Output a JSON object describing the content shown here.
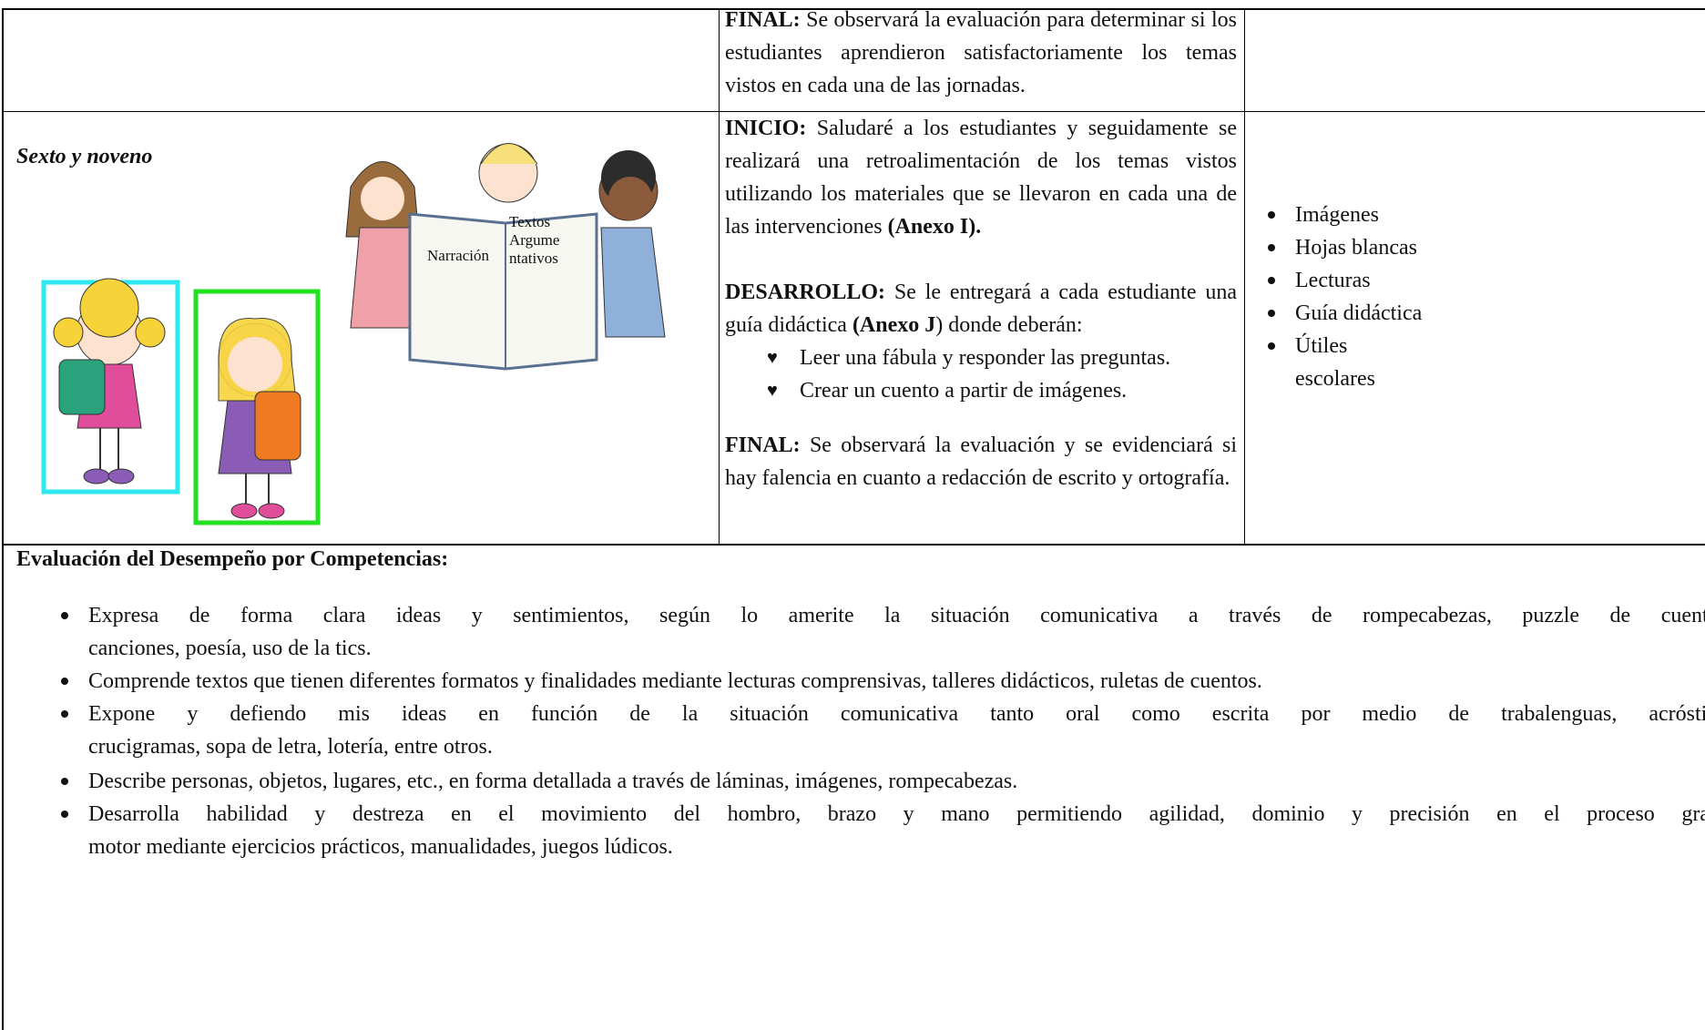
{
  "table": {
    "rows": [
      {
        "activities": [
          {
            "runs": [
              {
                "text": "FINAL:",
                "bold": true
              },
              {
                "text": " Se observará la evaluación para determinar si los estudiantes aprendieron satisfactoriamente los temas vistos en cada una de las jornadas.",
                "bold": false
              }
            ]
          }
        ]
      },
      {
        "group": "Sexto y noveno",
        "illustration": {
          "book_left": "Narración",
          "book_right": [
            "Textos",
            "Argume",
            "ntativos"
          ]
        },
        "activities": [
          {
            "runs": [
              {
                "text": "INICIO:",
                "bold": true
              },
              {
                "text": " Saludaré a los estudiantes y seguidamente se realizará una retroalimentación de los temas vistos utilizando los materiales que se llevaron en cada una de las intervenciones ",
                "bold": false
              },
              {
                "text": "(Anexo I).",
                "bold": true
              }
            ]
          },
          {
            "runs": [
              {
                "text": "DESARROLLO:",
                "bold": true
              },
              {
                "text": " Se le entregará a cada estudiante una guía didáctica ",
                "bold": false
              },
              {
                "text": "(Anexo J",
                "bold": true
              },
              {
                "text": ") donde deberán:",
                "bold": false
              }
            ],
            "steps": [
              "Leer una fábula y responder las preguntas.",
              "Crear un cuento a partir de imágenes."
            ]
          },
          {
            "runs": [
              {
                "text": "FINAL:",
                "bold": true
              },
              {
                "text": " Se observará la evaluación y se evidenciará si hay falencia en cuanto a redacción de escrito y ortografía.",
                "bold": false
              }
            ]
          }
        ],
        "resources": [
          "Imágenes",
          "Hojas blancas",
          "Lecturas",
          "Guía didáctica",
          "Útiles escolares"
        ]
      }
    ]
  },
  "evaluation": {
    "title": "Evaluación del Desempeño por Competencias:",
    "items": [
      [
        "Expresa de forma clara ideas y sentimientos, según lo amerite la situación comunicativa a través de rompecabezas, puzzle de cuentos",
        "canciones, poesía, uso de la tics."
      ],
      [
        "Comprende textos que tienen diferentes formatos y finalidades mediante lecturas comprensivas, talleres didácticos, ruletas de cuentos."
      ],
      [
        "Expone y defiendo mis ideas en función de la situación comunicativa tanto oral como escrita por medio de trabalenguas, acróstico",
        "crucigramas, sopa de letra, lotería, entre otros."
      ],
      [
        "Describe personas, objetos, lugares, etc., en forma detallada a través de láminas, imágenes, rompecabezas."
      ],
      [
        "Desarrolla habilidad y destreza en el movimiento del hombro, brazo y mano permitiendo agilidad, dominio y precisión en el proceso grafo",
        "motor mediante  ejercicios prácticos, manualidades, juegos lúdicos."
      ]
    ]
  }
}
